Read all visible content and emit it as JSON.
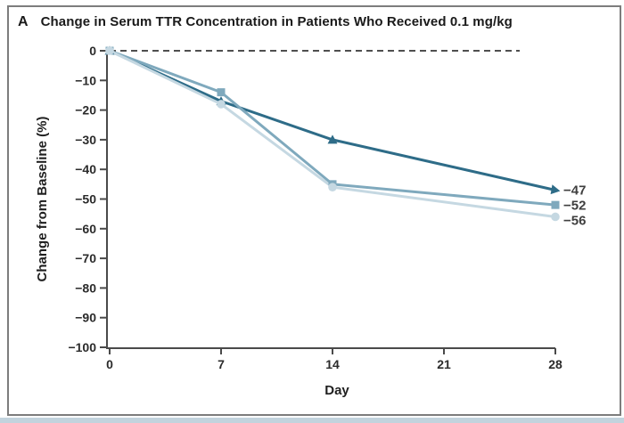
{
  "figure": {
    "panel_label": "A",
    "title": "Change in Serum TTR Concentration in Patients Who Received 0.1 mg/kg"
  },
  "chart_data": {
    "type": "line",
    "panel_label": "A",
    "title": "Change in Serum TTR Concentration in Patients Who Received 0.1 mg/kg",
    "xlabel": "Day",
    "ylabel": "Change from Baseline (%)",
    "xlim": [
      0,
      28
    ],
    "ylim": [
      -100,
      0
    ],
    "grid": false,
    "legend": "none (direct end-of-line labels)",
    "zero_reference_line": {
      "value": 0,
      "style": "dashed",
      "color": "#4f4f4f"
    },
    "x": [
      0,
      7,
      14,
      28
    ],
    "series": [
      {
        "name": "series-1",
        "marker": "triangle",
        "color": "#2e6c88",
        "values": [
          0,
          -17,
          -30,
          -47
        ],
        "end_label": "−47"
      },
      {
        "name": "series-2",
        "marker": "square",
        "color": "#7fa9bd",
        "values": [
          0,
          -14,
          -45,
          -52
        ],
        "end_label": "−52"
      },
      {
        "name": "series-3",
        "marker": "circle",
        "color": "#c5d8e2",
        "values": [
          0,
          -18,
          -46,
          -56
        ],
        "end_label": "−56"
      }
    ],
    "xticks": [
      {
        "label": "0",
        "value": 0
      },
      {
        "label": "7",
        "value": 7
      },
      {
        "label": "14",
        "value": 14
      },
      {
        "label": "21",
        "value": 21
      },
      {
        "label": "28",
        "value": 28
      }
    ],
    "yticks": [
      {
        "label": "0",
        "value": 0
      },
      {
        "label": "−10",
        "value": -10
      },
      {
        "label": "−20",
        "value": -20
      },
      {
        "label": "−30",
        "value": -30
      },
      {
        "label": "−40",
        "value": -40
      },
      {
        "label": "−50",
        "value": -50
      },
      {
        "label": "−60",
        "value": -60
      },
      {
        "label": "−70",
        "value": -70
      },
      {
        "label": "−80",
        "value": -80
      },
      {
        "label": "−90",
        "value": -90
      },
      {
        "label": "−100",
        "value": -100
      }
    ],
    "axis_color": "#4a4a4a",
    "tick_label_color": "#2b2b2b",
    "end_label_color": "#3f3f3f"
  }
}
